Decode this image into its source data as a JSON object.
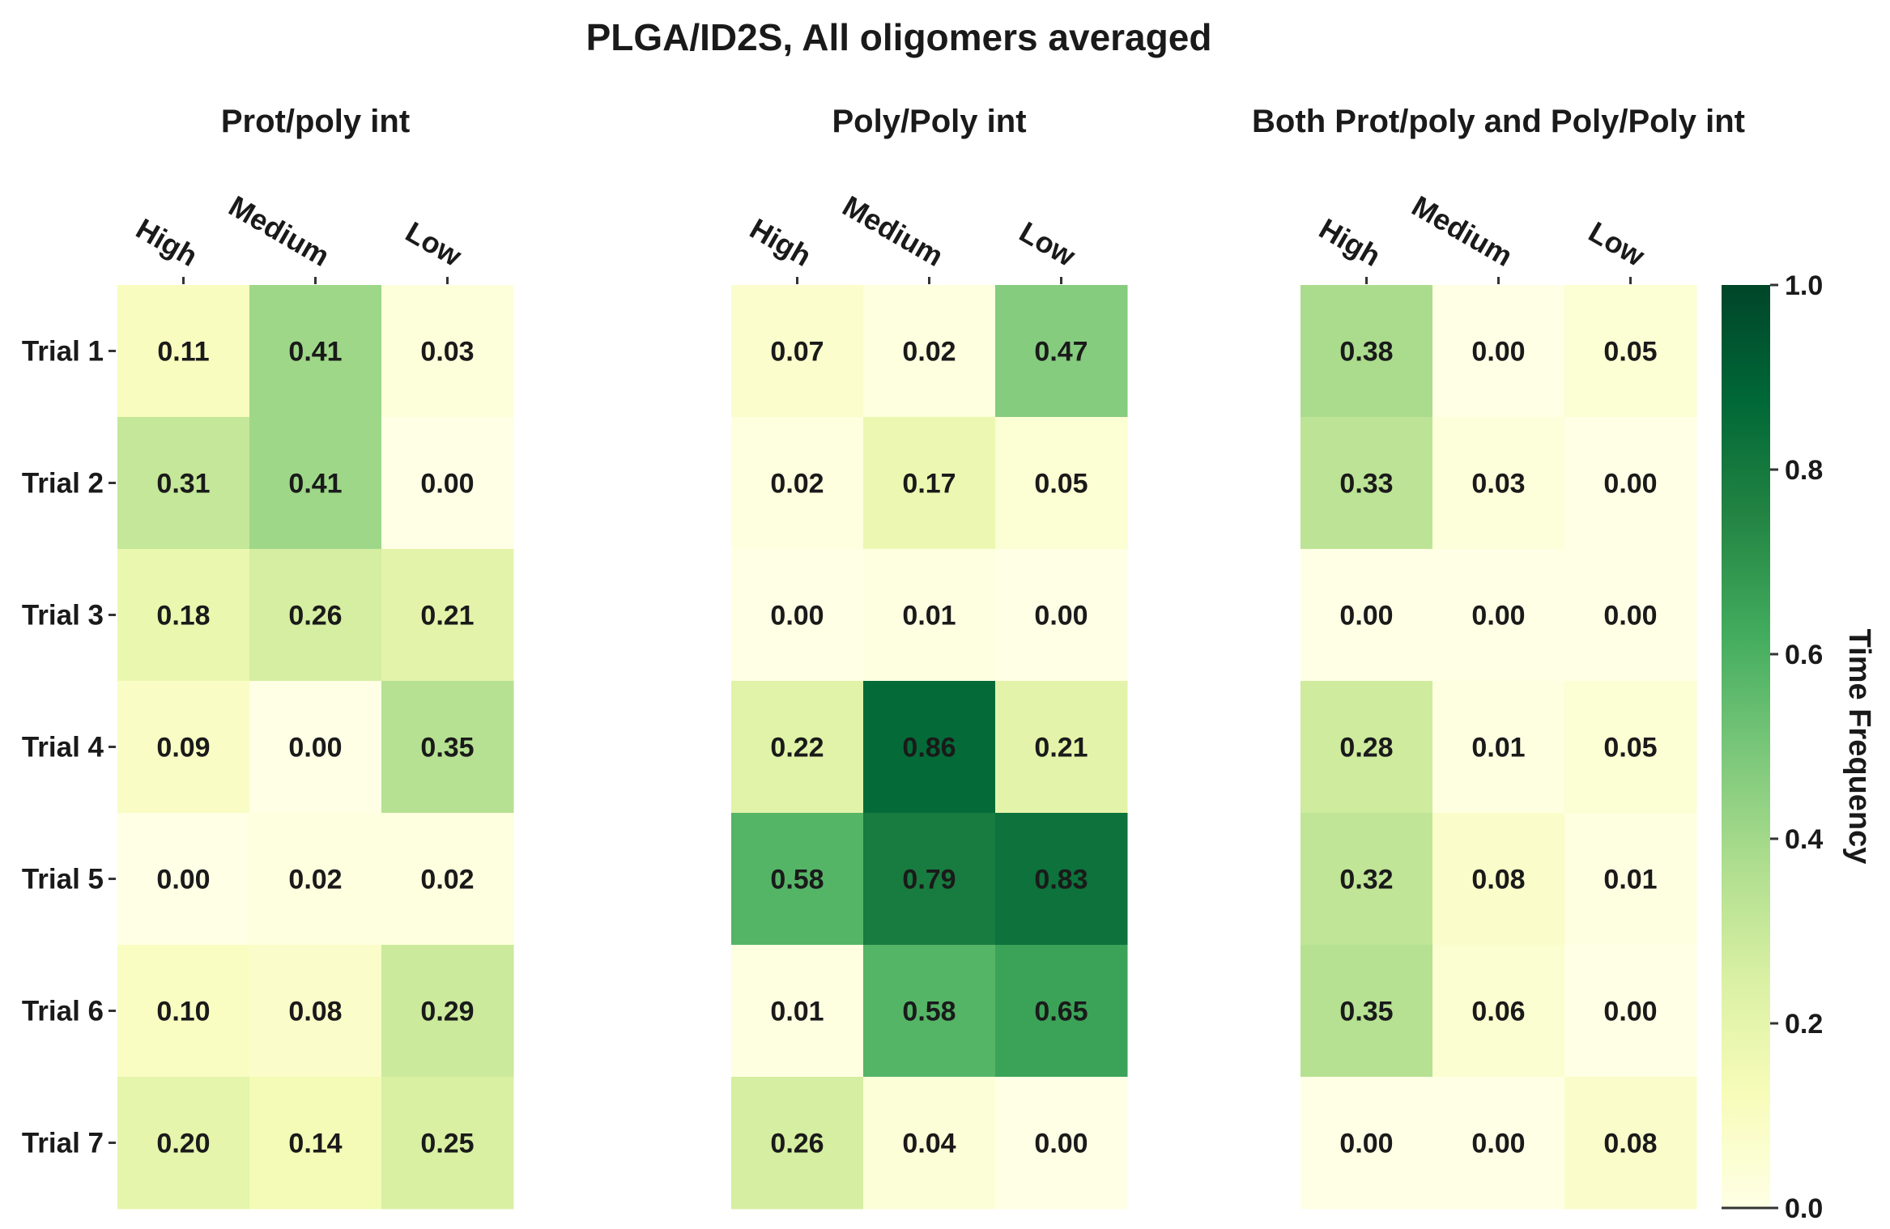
{
  "chart_data": {
    "type": "heatmap",
    "title": "PLGA/ID2S, All oligomers averaged",
    "rows": [
      "Trial 1",
      "Trial 2",
      "Trial 3",
      "Trial 4",
      "Trial 5",
      "Trial 6",
      "Trial 7"
    ],
    "columns": [
      "High",
      "Medium",
      "Low"
    ],
    "panels": [
      {
        "title": "Prot/poly int",
        "values": [
          [
            0.11,
            0.41,
            0.03
          ],
          [
            0.31,
            0.41,
            0.0
          ],
          [
            0.18,
            0.26,
            0.21
          ],
          [
            0.09,
            0.0,
            0.35
          ],
          [
            0.0,
            0.02,
            0.02
          ],
          [
            0.1,
            0.08,
            0.29
          ],
          [
            0.2,
            0.14,
            0.25
          ]
        ]
      },
      {
        "title": "Poly/Poly int",
        "values": [
          [
            0.07,
            0.02,
            0.47
          ],
          [
            0.02,
            0.17,
            0.05
          ],
          [
            0.0,
            0.01,
            0.0
          ],
          [
            0.22,
            0.86,
            0.21
          ],
          [
            0.58,
            0.79,
            0.83
          ],
          [
            0.01,
            0.58,
            0.65
          ],
          [
            0.26,
            0.04,
            0.0
          ]
        ]
      },
      {
        "title": "Both Prot/poly and Poly/Poly int",
        "values": [
          [
            0.38,
            0.0,
            0.05
          ],
          [
            0.33,
            0.03,
            0.0
          ],
          [
            0.0,
            0.0,
            0.0
          ],
          [
            0.28,
            0.01,
            0.05
          ],
          [
            0.32,
            0.08,
            0.01
          ],
          [
            0.35,
            0.06,
            0.0
          ],
          [
            0.0,
            0.0,
            0.08
          ]
        ]
      }
    ],
    "colorbar": {
      "label": "Time Frequency",
      "range": [
        0.0,
        1.0
      ],
      "ticks": [
        0.0,
        0.2,
        0.4,
        0.6,
        0.8,
        1.0
      ],
      "colormap": "YlGn"
    },
    "value_format": "0.00"
  }
}
